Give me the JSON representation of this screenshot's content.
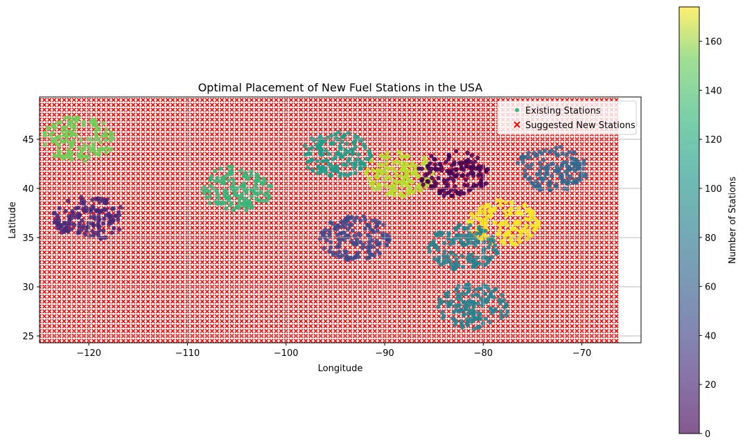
{
  "chart_data": {
    "type": "scatter",
    "title": "Optimal Placement of New Fuel Stations in the USA",
    "xlabel": "Longitude",
    "ylabel": "Latitude",
    "xlim": [
      -125,
      -64
    ],
    "ylim": [
      24.3,
      49.3
    ],
    "xticks": [
      -120,
      -110,
      -100,
      -90,
      -80,
      -70
    ],
    "xtick_labels": [
      "−120",
      "−110",
      "−100",
      "−90",
      "−80",
      "−70"
    ],
    "yticks": [
      25,
      30,
      35,
      40,
      45
    ],
    "yticks_labels": [
      "25",
      "30",
      "35",
      "40",
      "45"
    ],
    "grid": true,
    "legend_placement": "top-right",
    "series": [
      {
        "name": "Existing Stations",
        "marker": "circle",
        "color_by": "Number of Stations",
        "clusters": [
          {
            "lon": -95,
            "lat": 43.5,
            "value": 100
          },
          {
            "lon": -88.5,
            "lat": 41.5,
            "value": 150
          },
          {
            "lon": -83,
            "lat": 41.5,
            "value": 5
          },
          {
            "lon": -73,
            "lat": 42,
            "value": 65
          },
          {
            "lon": -78,
            "lat": 36.5,
            "value": 172
          },
          {
            "lon": -82,
            "lat": 34,
            "value": 75
          },
          {
            "lon": -93,
            "lat": 35,
            "value": 40
          },
          {
            "lon": -120,
            "lat": 37,
            "value": 15
          },
          {
            "lon": -121,
            "lat": 45,
            "value": 135
          },
          {
            "lon": -105,
            "lat": 40,
            "value": 120
          },
          {
            "lon": -81,
            "lat": 28,
            "value": 75
          }
        ]
      },
      {
        "name": "Suggested New Stations",
        "marker": "x",
        "color": "#ff0000",
        "grid_spacing_deg": 0.5,
        "lon_range": [
          -125,
          -66.5
        ],
        "lat_range": [
          24.5,
          49
        ]
      }
    ],
    "colorbar": {
      "label": "Number of Stations",
      "min": 0,
      "max": 174,
      "ticks": [
        0,
        20,
        40,
        60,
        80,
        100,
        120,
        140,
        160
      ],
      "tick_labels": [
        "0",
        "20",
        "40",
        "60",
        "80",
        "100",
        "120",
        "140",
        "160"
      ],
      "colormap": "viridis"
    }
  },
  "colors": {
    "suggested": "#ff0000",
    "grid": "#b0b0b0",
    "legend_existing": "#3ab97a"
  }
}
